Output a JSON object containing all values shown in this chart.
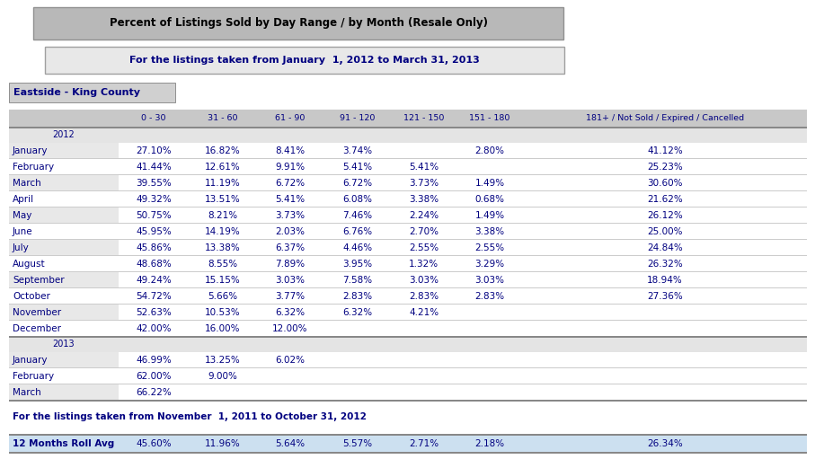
{
  "title1": "Percent of Listings Sold by Day Range / by Month (Resale Only)",
  "title2": "For the listings taken from January  1, 2012 to March 31, 2013",
  "region": "Eastside - King County",
  "columns": [
    "",
    "0 - 30",
    "31 - 60",
    "61 - 90",
    "91 - 120",
    "121 - 150",
    "151 - 180",
    "181+ / Not Sold / Expired / Cancelled"
  ],
  "year2012_label": "2012",
  "year2013_label": "2013",
  "rows_2012": [
    [
      "January",
      "27.10%",
      "16.82%",
      "8.41%",
      "3.74%",
      "",
      "2.80%",
      "41.12%"
    ],
    [
      "February",
      "41.44%",
      "12.61%",
      "9.91%",
      "5.41%",
      "5.41%",
      "",
      "25.23%"
    ],
    [
      "March",
      "39.55%",
      "11.19%",
      "6.72%",
      "6.72%",
      "3.73%",
      "1.49%",
      "30.60%"
    ],
    [
      "April",
      "49.32%",
      "13.51%",
      "5.41%",
      "6.08%",
      "3.38%",
      "0.68%",
      "21.62%"
    ],
    [
      "May",
      "50.75%",
      "8.21%",
      "3.73%",
      "7.46%",
      "2.24%",
      "1.49%",
      "26.12%"
    ],
    [
      "June",
      "45.95%",
      "14.19%",
      "2.03%",
      "6.76%",
      "2.70%",
      "3.38%",
      "25.00%"
    ],
    [
      "July",
      "45.86%",
      "13.38%",
      "6.37%",
      "4.46%",
      "2.55%",
      "2.55%",
      "24.84%"
    ],
    [
      "August",
      "48.68%",
      "8.55%",
      "7.89%",
      "3.95%",
      "1.32%",
      "3.29%",
      "26.32%"
    ],
    [
      "September",
      "49.24%",
      "15.15%",
      "3.03%",
      "7.58%",
      "3.03%",
      "3.03%",
      "18.94%"
    ],
    [
      "October",
      "54.72%",
      "5.66%",
      "3.77%",
      "2.83%",
      "2.83%",
      "2.83%",
      "27.36%"
    ],
    [
      "November",
      "52.63%",
      "10.53%",
      "6.32%",
      "6.32%",
      "4.21%",
      "",
      ""
    ],
    [
      "December",
      "42.00%",
      "16.00%",
      "12.00%",
      "",
      "",
      "",
      ""
    ]
  ],
  "rows_2013": [
    [
      "January",
      "46.99%",
      "13.25%",
      "6.02%",
      "",
      "",
      "",
      ""
    ],
    [
      "February",
      "62.00%",
      "9.00%",
      "",
      "",
      "",
      "",
      ""
    ],
    [
      "March",
      "66.22%",
      "",
      "",
      "",
      "",
      "",
      ""
    ]
  ],
  "footer_label": "For the listings taken from November  1, 2011 to October 31, 2012",
  "roll_avg_label": "12 Months Roll Avg",
  "roll_avg": [
    "45.60%",
    "11.96%",
    "5.64%",
    "5.57%",
    "2.71%",
    "2.18%",
    "26.34%"
  ],
  "fig_w": 9.07,
  "fig_h": 5.21,
  "dpi": 100,
  "bg_color": "#ffffff",
  "title1_bg": "#b8b8b8",
  "title1_border": "#909090",
  "title2_bg": "#e8e8e8",
  "title2_border": "#a0a0a0",
  "region_bg": "#d0d0d0",
  "region_border": "#909090",
  "col_hdr_bg": "#c8c8c8",
  "yr_row_bg": "#e4e4e4",
  "row_gray_bg": "#e8e8e8",
  "row_white_bg": "#ffffff",
  "line_color": "#888888",
  "thin_line": "#cccccc",
  "text_color": "#000080",
  "roll_avg_bg": "#cce0f0"
}
